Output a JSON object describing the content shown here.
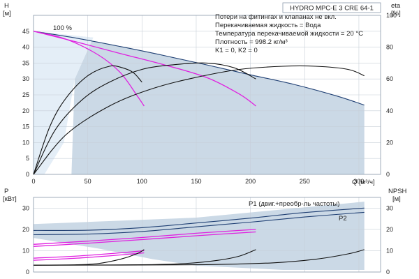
{
  "chart_data": [
    {
      "type": "line",
      "title": "HYDRO MPC-E 3 CRE 64-1",
      "x_axis_label": "Q [м³/ч]",
      "x_ticks": [
        0,
        50,
        100,
        150,
        200,
        250,
        300
      ],
      "xlim": [
        0,
        320
      ],
      "y_left_label": [
        "H",
        "[м]"
      ],
      "y_left_ticks": [
        0,
        5,
        10,
        15,
        20,
        25,
        30,
        35,
        40,
        45
      ],
      "ylim_left": [
        0,
        50
      ],
      "y_right_label": [
        "eta",
        "[%]"
      ],
      "y_right_ticks": [
        0,
        20,
        40,
        60,
        80,
        100
      ],
      "ylim_right": [
        0,
        100
      ],
      "info_lines": [
        "Потери на фитингах и клапанах не вкл.",
        "Перекачиваемая жидкость = Вода",
        "Температура перекачиваемой жидкости = 20 °C",
        "Плотность = 998.2 кг/м³",
        "K1 = 0, K2 = 0"
      ],
      "speed_label": "100 %",
      "grid": true,
      "series": [
        {
          "name": "",
          "kind": "head",
          "color": "#1f3f73",
          "points": [
            [
              0,
              45
            ],
            [
              40,
              42.8
            ],
            [
              80,
              40.2
            ],
            [
              120,
              37.4
            ],
            [
              160,
              34.4
            ],
            [
              200,
              31.3
            ],
            [
              240,
              28.3
            ],
            [
              280,
              24.6
            ],
            [
              305,
              21.8
            ]
          ]
        },
        {
          "name": "",
          "kind": "head",
          "color": "#e020e0",
          "points": [
            [
              0,
              45
            ],
            [
              30,
              42.5
            ],
            [
              60,
              37.5
            ],
            [
              80,
              32
            ],
            [
              95,
              25
            ],
            [
              102,
              21.5
            ]
          ]
        },
        {
          "name": "",
          "kind": "head",
          "color": "#e020e0",
          "points": [
            [
              0,
              45
            ],
            [
              40,
              41.6
            ],
            [
              80,
              38
            ],
            [
              120,
              34.5
            ],
            [
              160,
              30.4
            ],
            [
              190,
              25.2
            ],
            [
              205,
              21.5
            ]
          ]
        },
        {
          "name": "",
          "kind": "eta",
          "color": "#111111",
          "points": [
            [
              0,
              0
            ],
            [
              15,
              30
            ],
            [
              30,
              48
            ],
            [
              50,
              62
            ],
            [
              70,
              68
            ],
            [
              82,
              67
            ],
            [
              92,
              64
            ],
            [
              100,
              58
            ]
          ]
        },
        {
          "name": "",
          "kind": "eta",
          "color": "#111111",
          "points": [
            [
              0,
              0
            ],
            [
              20,
              28
            ],
            [
              45,
              47
            ],
            [
              70,
              58
            ],
            [
              100,
              66
            ],
            [
              130,
              69
            ],
            [
              160,
              70
            ],
            [
              185,
              67
            ],
            [
              205,
              60
            ]
          ]
        },
        {
          "name": "",
          "kind": "eta",
          "color": "#111111",
          "points": [
            [
              0,
              0
            ],
            [
              30,
              25
            ],
            [
              70,
              43
            ],
            [
              110,
              54
            ],
            [
              150,
              61
            ],
            [
              190,
              66
            ],
            [
              230,
              68
            ],
            [
              260,
              68
            ],
            [
              290,
              66
            ],
            [
              305,
              62
            ]
          ]
        }
      ]
    },
    {
      "type": "line",
      "x_ticks": [
        0,
        50,
        100,
        150,
        200,
        250,
        300
      ],
      "xlim": [
        0,
        320
      ],
      "y_left_label": [
        "P",
        "[кВт]"
      ],
      "y_left_ticks": [
        0,
        10,
        20,
        30
      ],
      "ylim_left": [
        0,
        35
      ],
      "y_right_label": [
        "NPSH",
        "[м]"
      ],
      "y_right_ticks": [
        0,
        10,
        20,
        30
      ],
      "ylim_right": [
        0,
        35
      ],
      "grid": true,
      "series": [
        {
          "name": "P1 (двиг.+преобр-ль частоты)",
          "kind": "power",
          "color": "#1f3f73",
          "points": [
            [
              0,
              19.5
            ],
            [
              50,
              19.6
            ],
            [
              100,
              20.8
            ],
            [
              150,
              23
            ],
            [
              200,
              25.3
            ],
            [
              250,
              27.9
            ],
            [
              305,
              30
            ]
          ]
        },
        {
          "name": "P2",
          "kind": "power",
          "color": "#1f3f73",
          "points": [
            [
              0,
              17.5
            ],
            [
              50,
              17.8
            ],
            [
              100,
              19
            ],
            [
              150,
              21.2
            ],
            [
              200,
              23.4
            ],
            [
              250,
              25.8
            ],
            [
              305,
              28
            ]
          ]
        },
        {
          "name": "",
          "kind": "power",
          "color": "#e020e0",
          "points": [
            [
              0,
              13
            ],
            [
              50,
              14.5
            ],
            [
              100,
              16.2
            ],
            [
              150,
              18.2
            ],
            [
              205,
              20
            ]
          ]
        },
        {
          "name": "",
          "kind": "power",
          "color": "#e020e0",
          "points": [
            [
              0,
              12
            ],
            [
              50,
              13.5
            ],
            [
              100,
              15.2
            ],
            [
              150,
              17
            ],
            [
              205,
              18.8
            ]
          ]
        },
        {
          "name": "",
          "kind": "power",
          "color": "#e020e0",
          "points": [
            [
              0,
              6.5
            ],
            [
              40,
              7.5
            ],
            [
              80,
              9
            ],
            [
              102,
              10
            ]
          ]
        },
        {
          "name": "",
          "kind": "power",
          "color": "#e020e0",
          "points": [
            [
              0,
              5.5
            ],
            [
              40,
              6.5
            ],
            [
              80,
              8
            ],
            [
              102,
              9
            ]
          ]
        },
        {
          "name": "",
          "kind": "npsh",
          "color": "#111111",
          "points": [
            [
              0,
              3.2
            ],
            [
              40,
              3.4
            ],
            [
              60,
              4
            ],
            [
              80,
              6
            ],
            [
              95,
              8.5
            ],
            [
              102,
              10.5
            ]
          ]
        },
        {
          "name": "",
          "kind": "npsh",
          "color": "#111111",
          "points": [
            [
              0,
              3.2
            ],
            [
              100,
              3.4
            ],
            [
              140,
              4
            ],
            [
              170,
              5.5
            ],
            [
              190,
              7.5
            ],
            [
              205,
              10.5
            ]
          ]
        },
        {
          "name": "",
          "kind": "npsh",
          "color": "#111111",
          "points": [
            [
              0,
              3.2
            ],
            [
              150,
              3.4
            ],
            [
              220,
              4.3
            ],
            [
              260,
              6
            ],
            [
              290,
              8.5
            ],
            [
              305,
              10.5
            ]
          ]
        }
      ]
    }
  ]
}
